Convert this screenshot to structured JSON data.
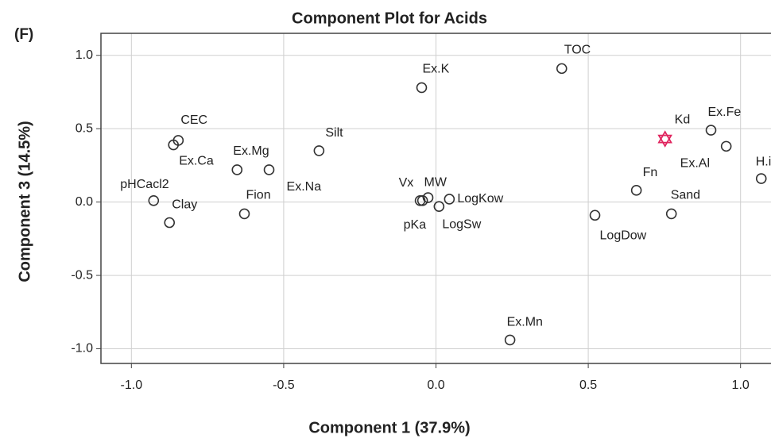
{
  "panel_label": "(F)",
  "chart_data": {
    "type": "scatter",
    "title": "Component Plot for Acids",
    "x_label": "Component 1 (37.9%)",
    "y_label": "Component 3 (14.5%)",
    "xlim": [
      -1.1,
      1.1
    ],
    "ylim": [
      -1.1,
      1.15
    ],
    "xticks": [
      {
        "value": -1,
        "label": "-1.0"
      },
      -0.5,
      {
        "value": 0,
        "label": "0.0"
      },
      0.5,
      {
        "value": 1,
        "label": "1.0"
      }
    ],
    "yticks": [
      {
        "value": 1,
        "label": "1.0"
      },
      0.5,
      {
        "value": 0,
        "label": "0.0"
      },
      -0.5,
      {
        "value": -1,
        "label": "-1.0"
      }
    ],
    "grid": true,
    "color": "#333333",
    "points": [
      {
        "label": "CEC",
        "x": -0.846,
        "y": 0.42
      },
      {
        "label": "Ex.Ca",
        "x": -0.862,
        "y": 0.39
      },
      {
        "label": "pHCacl2",
        "x": -0.927,
        "y": 0.01
      },
      {
        "label": "Clay",
        "x": -0.875,
        "y": -0.14
      },
      {
        "label": "Ex.Mg",
        "x": -0.653,
        "y": 0.22
      },
      {
        "label": "Ex.Na",
        "x": -0.548,
        "y": 0.22
      },
      {
        "label": "Fion",
        "x": -0.629,
        "y": -0.08
      },
      {
        "label": "Silt",
        "x": -0.384,
        "y": 0.35
      },
      {
        "label": "Ex.K",
        "x": -0.047,
        "y": 0.78
      },
      {
        "label": "TOC",
        "x": 0.413,
        "y": 0.91
      },
      {
        "label": "Vx",
        "x": -0.052,
        "y": 0.01
      },
      {
        "label": "MW",
        "x": -0.026,
        "y": 0.03
      },
      {
        "label": "pKa",
        "x": -0.044,
        "y": 0.01
      },
      {
        "label": "LogSw",
        "x": 0.01,
        "y": -0.03
      },
      {
        "label": "LogKow",
        "x": 0.044,
        "y": 0.02
      },
      {
        "label": "Ex.Mn",
        "x": 0.243,
        "y": -0.94
      },
      {
        "label": "LogDow",
        "x": 0.522,
        "y": -0.09
      },
      {
        "label": "Fn",
        "x": 0.658,
        "y": 0.08
      },
      {
        "label": "Sand",
        "x": 0.773,
        "y": -0.08
      },
      {
        "label": "Ex.Fe",
        "x": 0.903,
        "y": 0.49
      },
      {
        "label": "Ex.Al",
        "x": 0.953,
        "y": 0.38
      },
      {
        "label": "H.ion",
        "x": 1.068,
        "y": 0.16
      }
    ],
    "highlight": {
      "label": "Kd",
      "x": 0.752,
      "y": 0.43,
      "color": "#e0245e",
      "marker": "star"
    }
  }
}
